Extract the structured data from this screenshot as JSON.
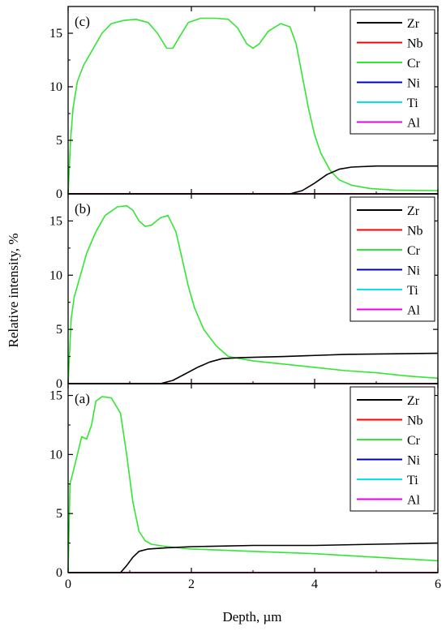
{
  "figure": {
    "xlabel": "Depth, µm",
    "ylabel": "Relative intensity, %"
  },
  "legend_colors": {
    "Zr": "#000000",
    "Nb": "#ff0000",
    "Cr": "#33e633",
    "Ni": "#0000cc",
    "Ti": "#00e5e5",
    "Al": "#e600e6"
  },
  "chart_data": [
    {
      "type": "line",
      "panel_label": "(c)",
      "xlim": [
        0,
        6
      ],
      "ylim": [
        0,
        17.5
      ],
      "x_ticks": [
        "0",
        "2",
        "4",
        "6"
      ],
      "y_ticks": [
        "0",
        "5",
        "10",
        "15"
      ],
      "legend": [
        "Zr",
        "Nb",
        "Cr",
        "Ni",
        "Ti",
        "Al"
      ],
      "legend_placement": "top-right",
      "series": [
        {
          "name": "Zr",
          "x": [
            0,
            3.6,
            3.8,
            4.0,
            4.2,
            4.4,
            4.6,
            5.0,
            6.0
          ],
          "y": [
            0,
            0,
            0.3,
            1.0,
            1.8,
            2.3,
            2.5,
            2.6,
            2.6
          ]
        },
        {
          "name": "Nb",
          "x": [
            0,
            6
          ],
          "y": [
            0,
            0
          ]
        },
        {
          "name": "Cr",
          "x": [
            0,
            0.04,
            0.08,
            0.15,
            0.25,
            0.4,
            0.55,
            0.7,
            0.9,
            1.1,
            1.3,
            1.45,
            1.6,
            1.7,
            1.8,
            1.95,
            2.15,
            2.4,
            2.6,
            2.75,
            2.9,
            3.0,
            3.1,
            3.25,
            3.45,
            3.6,
            3.7,
            3.8,
            3.9,
            4.0,
            4.1,
            4.25,
            4.4,
            4.6,
            4.9,
            5.3,
            6.0
          ],
          "y": [
            0,
            5,
            8,
            10.5,
            12,
            13.5,
            15,
            15.9,
            16.2,
            16.3,
            16.0,
            15.0,
            13.6,
            13.6,
            14.6,
            16.0,
            16.4,
            16.4,
            16.3,
            15.5,
            14.0,
            13.6,
            14.0,
            15.2,
            15.9,
            15.6,
            14.0,
            11.0,
            8.0,
            5.5,
            3.8,
            2.2,
            1.3,
            0.8,
            0.5,
            0.35,
            0.3
          ]
        },
        {
          "name": "Ni",
          "x": [
            0,
            6
          ],
          "y": [
            0,
            0
          ]
        },
        {
          "name": "Ti",
          "x": [
            0,
            6
          ],
          "y": [
            0,
            0
          ]
        },
        {
          "name": "Al",
          "x": [
            0,
            6
          ],
          "y": [
            0,
            0
          ]
        }
      ]
    },
    {
      "type": "line",
      "panel_label": "(b)",
      "xlim": [
        0,
        6
      ],
      "ylim": [
        0,
        17.5
      ],
      "x_ticks": [
        "0",
        "2",
        "4",
        "6"
      ],
      "y_ticks": [
        "0",
        "5",
        "10",
        "15"
      ],
      "legend": [
        "Zr",
        "Nb",
        "Cr",
        "Ni",
        "Ti",
        "Al"
      ],
      "legend_placement": "top-right",
      "series": [
        {
          "name": "Zr",
          "x": [
            0,
            1.5,
            1.7,
            1.9,
            2.1,
            2.3,
            2.5,
            2.8,
            3.5,
            4.5,
            6.0
          ],
          "y": [
            0,
            0,
            0.3,
            0.9,
            1.5,
            2.0,
            2.3,
            2.4,
            2.5,
            2.7,
            2.8
          ]
        },
        {
          "name": "Nb",
          "x": [
            0,
            6
          ],
          "y": [
            0,
            0
          ]
        },
        {
          "name": "Cr",
          "x": [
            0,
            0.05,
            0.1,
            0.2,
            0.3,
            0.45,
            0.6,
            0.8,
            0.95,
            1.05,
            1.15,
            1.25,
            1.35,
            1.5,
            1.62,
            1.75,
            1.85,
            1.95,
            2.05,
            2.2,
            2.4,
            2.6,
            3.0,
            3.5,
            4.0,
            4.5,
            5.0,
            5.5,
            6.0
          ],
          "y": [
            0,
            6,
            8,
            10,
            12,
            14,
            15.5,
            16.3,
            16.4,
            16.0,
            15.0,
            14.5,
            14.6,
            15.3,
            15.5,
            14.0,
            11.5,
            9.0,
            7.0,
            5.0,
            3.5,
            2.5,
            2.1,
            1.8,
            1.5,
            1.2,
            1.0,
            0.7,
            0.5
          ]
        },
        {
          "name": "Ni",
          "x": [
            0,
            6
          ],
          "y": [
            0,
            0
          ]
        },
        {
          "name": "Ti",
          "x": [
            0,
            6
          ],
          "y": [
            0,
            0
          ]
        },
        {
          "name": "Al",
          "x": [
            0,
            6
          ],
          "y": [
            0,
            0
          ]
        }
      ]
    },
    {
      "type": "line",
      "panel_label": "(a)",
      "xlim": [
        0,
        6
      ],
      "ylim": [
        0,
        16
      ],
      "x_ticks": [
        "0",
        "2",
        "4",
        "6"
      ],
      "y_ticks": [
        "0",
        "5",
        "10",
        "15"
      ],
      "legend": [
        "Zr",
        "Nb",
        "Cr",
        "Ni",
        "Ti",
        "Al"
      ],
      "legend_placement": "top-right",
      "series": [
        {
          "name": "Zr",
          "x": [
            0,
            0.85,
            0.95,
            1.05,
            1.15,
            1.3,
            1.6,
            2.0,
            3.0,
            4.0,
            5.0,
            6.0
          ],
          "y": [
            0,
            0,
            0.6,
            1.3,
            1.8,
            2.0,
            2.1,
            2.2,
            2.3,
            2.3,
            2.4,
            2.5
          ]
        },
        {
          "name": "Nb",
          "x": [
            0,
            6
          ],
          "y": [
            0,
            0
          ]
        },
        {
          "name": "Cr",
          "x": [
            0,
            0.03,
            0.08,
            0.15,
            0.22,
            0.3,
            0.38,
            0.45,
            0.55,
            0.7,
            0.85,
            0.95,
            1.05,
            1.15,
            1.25,
            1.35,
            1.6,
            2.0,
            3.0,
            4.0,
            5.0,
            6.0
          ],
          "y": [
            0,
            7.5,
            8.5,
            10.0,
            11.5,
            11.3,
            12.5,
            14.5,
            14.9,
            14.8,
            13.5,
            10.0,
            6.0,
            3.5,
            2.7,
            2.4,
            2.2,
            2.0,
            1.8,
            1.6,
            1.3,
            1.0
          ]
        },
        {
          "name": "Ni",
          "x": [
            0,
            6
          ],
          "y": [
            0,
            0
          ]
        },
        {
          "name": "Ti",
          "x": [
            0,
            6
          ],
          "y": [
            0,
            0
          ]
        },
        {
          "name": "Al",
          "x": [
            0,
            6
          ],
          "y": [
            0,
            0
          ]
        }
      ]
    }
  ]
}
